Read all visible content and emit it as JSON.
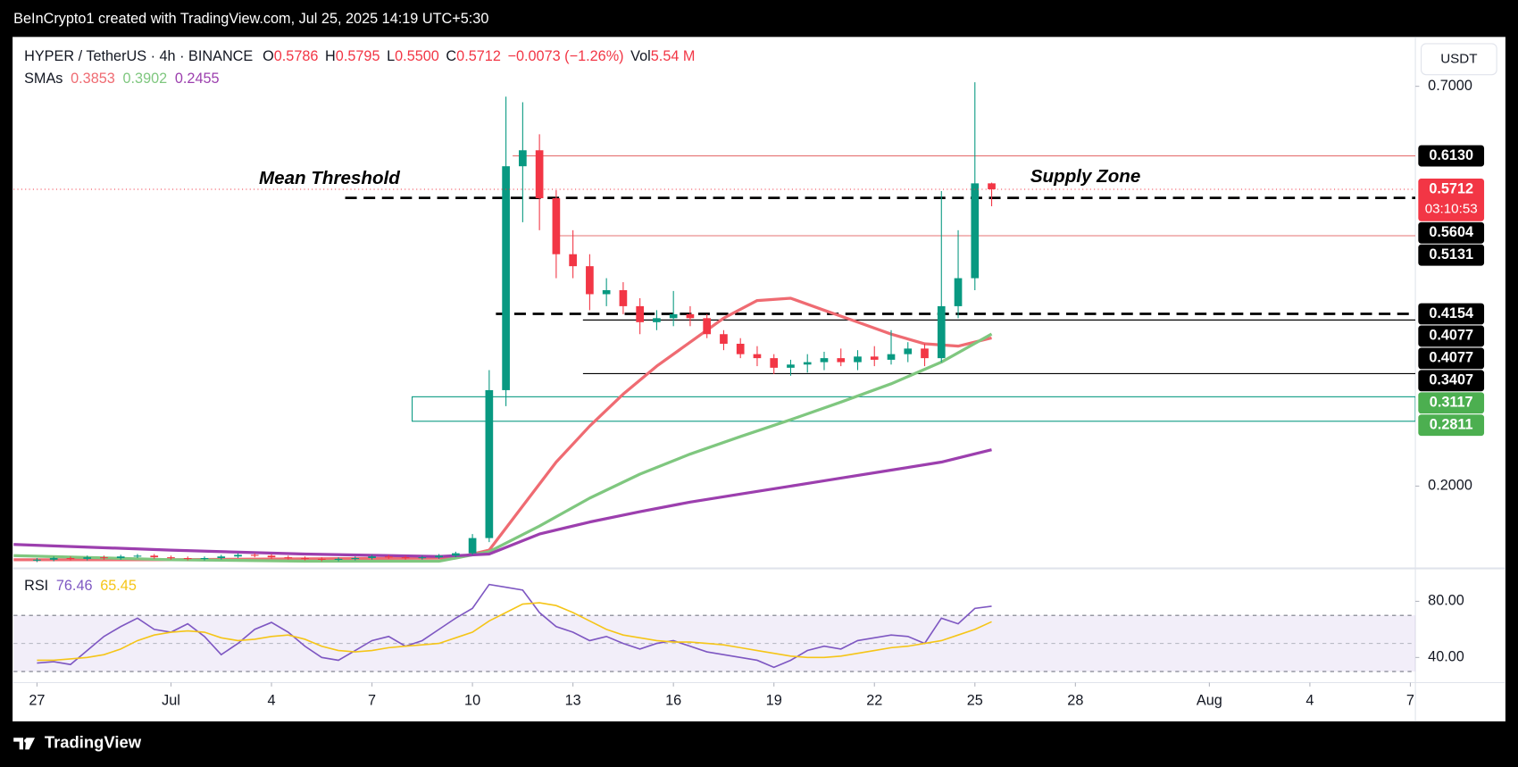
{
  "header": {
    "text": "BeInCrypto1 created with TradingView.com, Jul 25, 2025 14:19 UTC+5:30"
  },
  "footer": {
    "brand": "TradingView"
  },
  "chart_data": {
    "type": "candlestick",
    "symbol": "HYPER / TetherUS · 4h · BINANCE",
    "ohlc_prefixes": {
      "open": "O",
      "high": "H",
      "low": "L",
      "close": "C",
      "volume": "Vol"
    },
    "last_labels": {
      "open": "0.5786",
      "high": "0.5795",
      "low": "0.5500",
      "close": "0.5712"
    },
    "change_label": "−0.0073 (−1.26%)",
    "volume_label": "5.54 M",
    "currency": "USDT",
    "countdown": "03:10:53",
    "up_color": "#089981",
    "down_color": "#f23645",
    "x": [
      0,
      0.5,
      1,
      1.5,
      2,
      2.5,
      3,
      3.5,
      4,
      4.5,
      5,
      5.5,
      6,
      6.5,
      7,
      7.5,
      8,
      8.5,
      9,
      9.5,
      10,
      10.5,
      11,
      11.5,
      12,
      12.5,
      13,
      13.5,
      14,
      14.5,
      15,
      15.5,
      16,
      16.5,
      17,
      17.5,
      18,
      18.5,
      19,
      19.5,
      20,
      20.5,
      21,
      21.5,
      22,
      22.5,
      23,
      23.5,
      24,
      24.5,
      25,
      25.5,
      26,
      26.5,
      27,
      27.5,
      28,
      28.5
    ],
    "open": [
      0.107,
      0.108,
      0.11,
      0.109,
      0.111,
      0.11,
      0.112,
      0.113,
      0.111,
      0.11,
      0.109,
      0.11,
      0.112,
      0.114,
      0.113,
      0.111,
      0.11,
      0.109,
      0.108,
      0.109,
      0.11,
      0.112,
      0.111,
      0.11,
      0.111,
      0.113,
      0.116,
      0.135,
      0.32,
      0.6,
      0.62,
      0.56,
      0.49,
      0.475,
      0.44,
      0.445,
      0.425,
      0.405,
      0.41,
      0.415,
      0.41,
      0.39,
      0.378,
      0.365,
      0.36,
      0.348,
      0.352,
      0.355,
      0.36,
      0.355,
      0.362,
      0.358,
      0.365,
      0.372,
      0.36,
      0.425,
      0.46,
      0.5786
    ],
    "high": [
      0.11,
      0.112,
      0.112,
      0.113,
      0.113,
      0.114,
      0.115,
      0.115,
      0.113,
      0.112,
      0.112,
      0.114,
      0.116,
      0.116,
      0.115,
      0.113,
      0.112,
      0.111,
      0.111,
      0.112,
      0.114,
      0.114,
      0.113,
      0.113,
      0.115,
      0.118,
      0.14,
      0.345,
      0.687,
      0.68,
      0.64,
      0.57,
      0.52,
      0.49,
      0.46,
      0.455,
      0.435,
      0.42,
      0.444,
      0.425,
      0.415,
      0.395,
      0.385,
      0.375,
      0.365,
      0.358,
      0.365,
      0.368,
      0.372,
      0.37,
      0.375,
      0.395,
      0.38,
      0.378,
      0.569,
      0.52,
      0.705,
      0.5795
    ],
    "low": [
      0.105,
      0.106,
      0.107,
      0.107,
      0.108,
      0.108,
      0.11,
      0.109,
      0.108,
      0.107,
      0.107,
      0.108,
      0.11,
      0.111,
      0.109,
      0.108,
      0.107,
      0.106,
      0.106,
      0.107,
      0.108,
      0.109,
      0.108,
      0.108,
      0.109,
      0.111,
      0.114,
      0.13,
      0.3,
      0.53,
      0.52,
      0.46,
      0.46,
      0.42,
      0.425,
      0.415,
      0.39,
      0.395,
      0.4,
      0.4,
      0.385,
      0.37,
      0.36,
      0.35,
      0.34,
      0.338,
      0.342,
      0.345,
      0.35,
      0.345,
      0.35,
      0.352,
      0.355,
      0.35,
      0.355,
      0.41,
      0.445,
      0.55
    ],
    "close": [
      0.108,
      0.11,
      0.109,
      0.111,
      0.11,
      0.112,
      0.113,
      0.111,
      0.11,
      0.109,
      0.11,
      0.112,
      0.114,
      0.113,
      0.111,
      0.11,
      0.109,
      0.108,
      0.109,
      0.11,
      0.112,
      0.111,
      0.11,
      0.111,
      0.113,
      0.116,
      0.135,
      0.32,
      0.6,
      0.62,
      0.56,
      0.49,
      0.475,
      0.44,
      0.445,
      0.425,
      0.405,
      0.41,
      0.415,
      0.41,
      0.39,
      0.378,
      0.365,
      0.36,
      0.348,
      0.352,
      0.355,
      0.36,
      0.355,
      0.362,
      0.358,
      0.365,
      0.372,
      0.36,
      0.425,
      0.46,
      0.5786,
      0.5712
    ],
    "xlim": [
      -0.7,
      41.15
    ],
    "xticks": [
      {
        "value": 0,
        "label": "27"
      },
      {
        "value": 4,
        "label": "Jul"
      },
      {
        "value": 7,
        "label": "4"
      },
      {
        "value": 10,
        "label": "7"
      },
      {
        "value": 13,
        "label": "10"
      },
      {
        "value": 16,
        "label": "13"
      },
      {
        "value": 19,
        "label": "16"
      },
      {
        "value": 22,
        "label": "19"
      },
      {
        "value": 25,
        "label": "22"
      },
      {
        "value": 28,
        "label": "25"
      },
      {
        "value": 31,
        "label": "28"
      },
      {
        "value": 35,
        "label": "Aug"
      },
      {
        "value": 38,
        "label": "4"
      },
      {
        "value": 41,
        "label": "7"
      }
    ],
    "ylim": [
      0.1007,
      0.7593
    ],
    "yticks": [
      {
        "value": 0.7,
        "label": "0.7000"
      },
      {
        "value": 0.2,
        "label": "0.2000"
      }
    ],
    "sma_label": "SMAs",
    "smas": [
      {
        "color": "#ef6b72",
        "x": [
          -0.7,
          4,
          8,
          12.5,
          13.5,
          14.5,
          15.5,
          16.5,
          17.5,
          18.5,
          19.5,
          20.5,
          21.5,
          22.5,
          23.5,
          24.5,
          25.5,
          26.5,
          27.5,
          28.5
        ],
        "values": [
          0.108,
          0.108,
          0.109,
          0.11,
          0.12,
          0.175,
          0.23,
          0.275,
          0.315,
          0.35,
          0.38,
          0.41,
          0.432,
          0.435,
          0.42,
          0.405,
          0.39,
          0.378,
          0.375,
          0.3853
        ]
      },
      {
        "color": "#7fc77f",
        "x": [
          -0.7,
          4,
          8,
          12,
          13.5,
          15,
          16.5,
          18,
          19.5,
          21,
          22.5,
          24,
          25.5,
          27,
          28.5
        ],
        "values": [
          0.113,
          0.108,
          0.106,
          0.106,
          0.118,
          0.15,
          0.185,
          0.215,
          0.24,
          0.262,
          0.283,
          0.305,
          0.328,
          0.355,
          0.3902
        ]
      },
      {
        "color": "#9c3fae",
        "x": [
          -0.7,
          4,
          8,
          12,
          13.5,
          15,
          16.5,
          18,
          19.5,
          21,
          22.5,
          24,
          25.5,
          27,
          28.5
        ],
        "values": [
          0.127,
          0.12,
          0.115,
          0.112,
          0.115,
          0.14,
          0.155,
          0.168,
          0.18,
          0.19,
          0.2,
          0.21,
          0.22,
          0.23,
          0.2455
        ]
      }
    ],
    "levels": [
      {
        "value": 0.613,
        "label": "0.6130",
        "x_start": 14.2,
        "color": "#e57373",
        "style": "solid"
      },
      {
        "value": 0.5604,
        "label": "0.5604",
        "x_start": 9.2,
        "color": "#000000",
        "style": "dashed"
      },
      {
        "value": 0.5131,
        "label": "0.5131",
        "x_start": 15.4,
        "color": "#e57373",
        "style": "solid"
      },
      {
        "value": 0.4154,
        "label": "0.4154",
        "x_start": 13.7,
        "color": "#000000",
        "style": "dashed"
      },
      {
        "value": 0.4077,
        "label": "0.4077",
        "x_start": 16.3,
        "color": "#000000",
        "style": "solid"
      },
      {
        "value": 0.4077,
        "label": "0.4077",
        "x_start": 16.3,
        "color": "#000000",
        "style": "solid"
      },
      {
        "value": 0.3407,
        "label": "0.3407",
        "x_start": 16.3,
        "color": "#000000",
        "style": "solid"
      }
    ],
    "zone": {
      "top": {
        "value": 0.3117,
        "label": "0.3117"
      },
      "bottom": {
        "value": 0.2811,
        "label": "0.2811"
      },
      "x_start": 11.2,
      "color": "#089981",
      "label_color": "#4caf50"
    },
    "annotations": [
      {
        "text": "Mean Threshold",
        "x": 8.73,
        "y": 0.5838
      },
      {
        "text": "Supply Zone",
        "x": 31.3,
        "y": 0.5862
      }
    ],
    "rsi": {
      "label": "RSI",
      "ylim": [
        22.1,
        99.3
      ],
      "yticks": [
        {
          "value": 80,
          "label": "80.00"
        },
        {
          "value": 40,
          "label": "40.00"
        }
      ],
      "band": [
        30,
        70
      ],
      "mid": 50,
      "series": [
        {
          "color": "#7e57c2",
          "values": [
            36,
            37,
            35,
            45,
            55,
            62,
            68,
            60,
            58,
            64,
            55,
            42,
            50,
            60,
            65,
            58,
            48,
            40,
            38,
            45,
            52,
            55,
            48,
            52,
            60,
            68,
            75,
            92,
            90,
            88,
            72,
            62,
            58,
            52,
            55,
            50,
            46,
            50,
            52,
            48,
            44,
            42,
            40,
            38,
            33,
            38,
            45,
            48,
            46,
            52,
            54,
            56,
            55,
            50,
            68,
            64,
            75,
            76.46
          ]
        },
        {
          "color": "#f5c518",
          "values": [
            38,
            38,
            39,
            40,
            42,
            46,
            52,
            56,
            58,
            59,
            58,
            54,
            52,
            53,
            55,
            56,
            53,
            48,
            45,
            44,
            45,
            47,
            48,
            49,
            50,
            54,
            58,
            66,
            72,
            78,
            79,
            77,
            72,
            66,
            60,
            56,
            54,
            52,
            51,
            51,
            50,
            49,
            47,
            45,
            43,
            41,
            40,
            40,
            41,
            43,
            45,
            47,
            48,
            50,
            52,
            56,
            60,
            65.45
          ]
        }
      ]
    }
  }
}
